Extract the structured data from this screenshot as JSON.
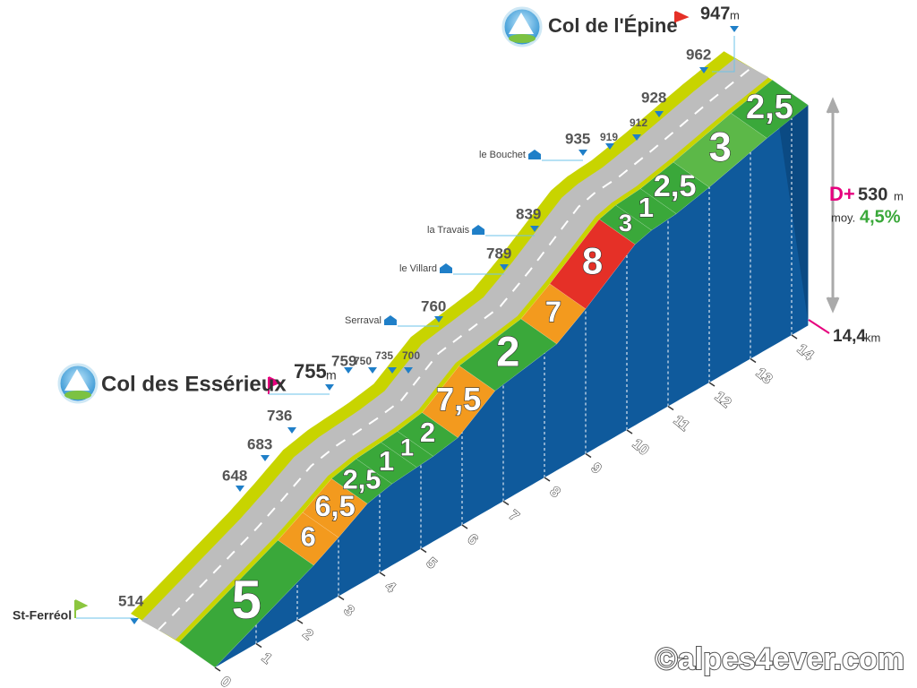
{
  "start": {
    "name": "St-Ferréol",
    "altitude": "514"
  },
  "summits": [
    {
      "name": "Col des Essérieux",
      "altitude": "755",
      "unit": "m"
    },
    {
      "name": "Col de l'Épine",
      "altitude": "947",
      "unit": "m"
    }
  ],
  "places": [
    {
      "name": "Serraval",
      "altitude": "760"
    },
    {
      "name": "le Villard",
      "altitude": "789"
    },
    {
      "name": "la Travais",
      "altitude": "839"
    },
    {
      "name": "le Bouchet",
      "altitude": "935"
    }
  ],
  "altitudes": [
    "648",
    "683",
    "736",
    "759",
    "750",
    "735",
    "700",
    "919",
    "912",
    "928",
    "962"
  ],
  "segments": [
    {
      "gradient": "5",
      "color": "#3aa83a"
    },
    {
      "gradient": "6",
      "color": "#f39a1e"
    },
    {
      "gradient": "6,5",
      "color": "#f39a1e"
    },
    {
      "gradient": "2,5",
      "color": "#3aa83a"
    },
    {
      "gradient": "1",
      "color": "#3aa83a"
    },
    {
      "gradient": "1",
      "color": "#3aa83a"
    },
    {
      "gradient": "2",
      "color": "#3aa83a"
    },
    {
      "gradient": "7,5",
      "color": "#f39a1e"
    },
    {
      "gradient": "2",
      "color": "#3aa83a"
    },
    {
      "gradient": "7",
      "color": "#f39a1e"
    },
    {
      "gradient": "8",
      "color": "#e53027"
    },
    {
      "gradient": "3",
      "color": "#3aa83a"
    },
    {
      "gradient": "1",
      "color": "#3aa83a"
    },
    {
      "gradient": "2,5",
      "color": "#3aa83a"
    },
    {
      "gradient": "3",
      "color": "#5cb848"
    },
    {
      "gradient": "2,5",
      "color": "#3aa83a"
    }
  ],
  "km_axis": [
    0,
    1,
    2,
    3,
    4,
    5,
    6,
    7,
    8,
    9,
    10,
    11,
    12,
    13,
    14
  ],
  "stats": {
    "dplus_label": "D+",
    "dplus": "530",
    "dplus_unit": "m",
    "avg_label": "moy.",
    "avg": "4,5%",
    "length": "14,4",
    "length_unit": "km"
  },
  "copyright": "©alpes4ever.com"
}
